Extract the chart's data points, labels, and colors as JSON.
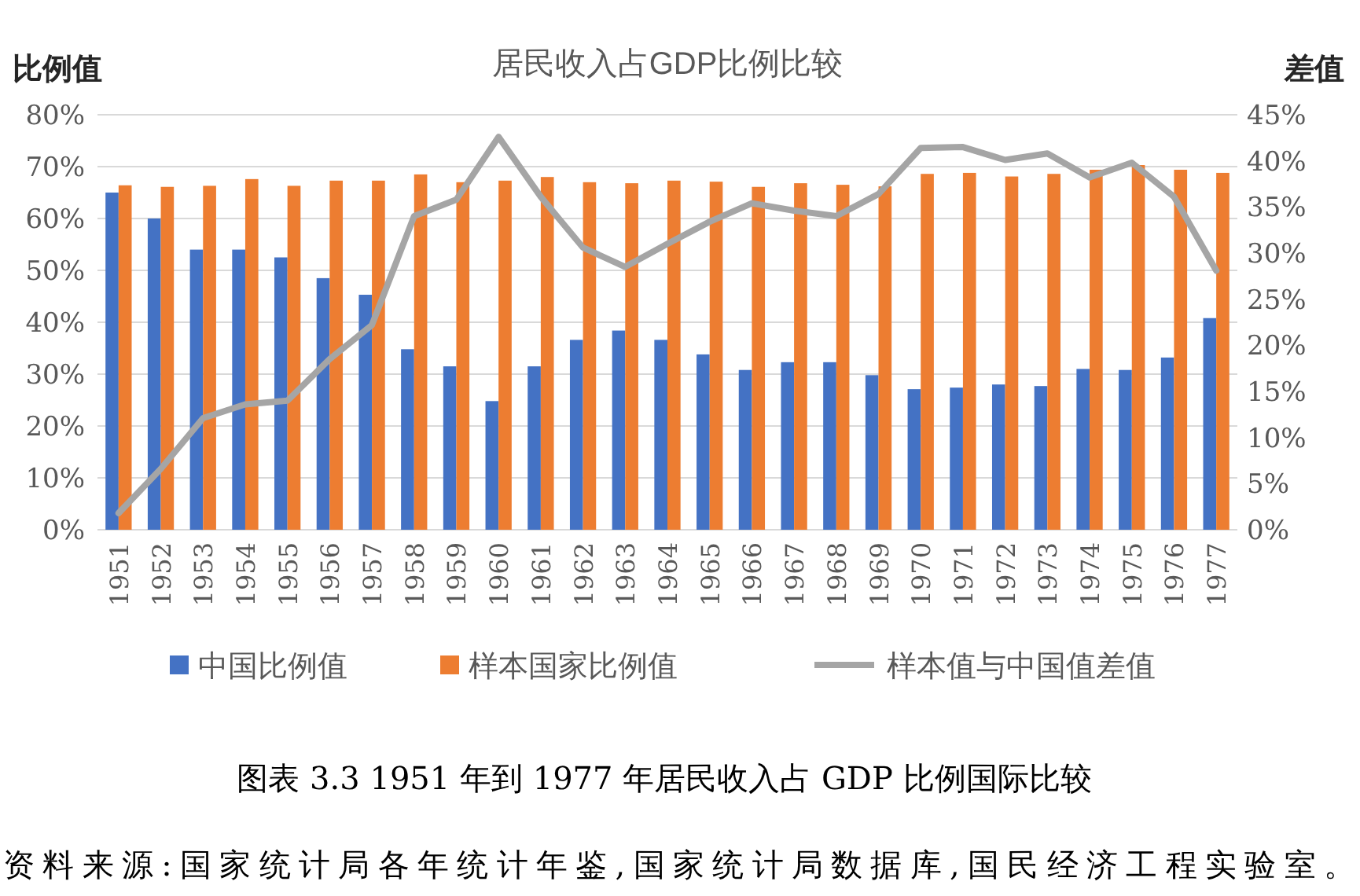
{
  "chart_data": {
    "type": "bar",
    "title": "居民收入占GDP比例比较",
    "ylabel": "比例值",
    "y2label": "差值",
    "categories": [
      "1951",
      "1952",
      "1953",
      "1954",
      "1955",
      "1956",
      "1957",
      "1958",
      "1959",
      "1960",
      "1961",
      "1962",
      "1963",
      "1964",
      "1965",
      "1966",
      "1967",
      "1968",
      "1969",
      "1970",
      "1971",
      "1972",
      "1973",
      "1974",
      "1975",
      "1976",
      "1977"
    ],
    "series": [
      {
        "name": "中国比例值",
        "color": "#4472c4",
        "values": [
          65,
          60,
          54,
          54,
          52.5,
          48.5,
          45.3,
          34.8,
          31.5,
          24.8,
          31.5,
          36.6,
          38.4,
          36.6,
          33.8,
          30.8,
          32.3,
          32.3,
          29.8,
          27.1,
          27.4,
          28,
          27.7,
          31,
          30.8,
          33.2,
          40.8
        ]
      },
      {
        "name": "样本国家比例值",
        "color": "#ed7d31",
        "values": [
          66.4,
          66.1,
          66.3,
          67.6,
          66.3,
          67.3,
          67.3,
          68.5,
          67,
          67.3,
          68,
          67,
          66.8,
          67.3,
          67.1,
          66.1,
          66.8,
          66.5,
          66.2,
          68.6,
          68.8,
          68.1,
          68.6,
          69.4,
          70.3,
          69.4,
          68.8
        ]
      },
      {
        "name": "样本值与中国值差值",
        "type": "line",
        "axis": "y2",
        "color": "#a5a5a5",
        "values": [
          1.8,
          6.6,
          12.1,
          13.6,
          14,
          18.5,
          22.2,
          34,
          35.8,
          42.6,
          36.1,
          30.6,
          28.5,
          31,
          33.4,
          35.4,
          34.6,
          34,
          36.4,
          41.4,
          41.5,
          40.1,
          40.8,
          38.2,
          39.8,
          36.1,
          28.1
        ]
      }
    ],
    "ylim": [
      0,
      80
    ],
    "yticks": [
      {
        "value": 0,
        "label": "0%"
      },
      {
        "value": 10,
        "label": "10%"
      },
      {
        "value": 20,
        "label": "20%"
      },
      {
        "value": 30,
        "label": "30%"
      },
      {
        "value": 40,
        "label": "40%"
      },
      {
        "value": 50,
        "label": "50%"
      },
      {
        "value": 60,
        "label": "60%"
      },
      {
        "value": 70,
        "label": "70%"
      },
      {
        "value": 80,
        "label": "80%"
      }
    ],
    "y2lim": [
      0,
      45
    ],
    "y2ticks": [
      {
        "value": 0,
        "label": "0%"
      },
      {
        "value": 5,
        "label": "5%"
      },
      {
        "value": 10,
        "label": "10%"
      },
      {
        "value": 15,
        "label": "15%"
      },
      {
        "value": 20,
        "label": "20%"
      },
      {
        "value": 25,
        "label": "25%"
      },
      {
        "value": 30,
        "label": "30%"
      },
      {
        "value": 35,
        "label": "35%"
      },
      {
        "value": 40,
        "label": "40%"
      },
      {
        "value": 45,
        "label": "45%"
      }
    ],
    "grid": "y",
    "legend": "bottom",
    "marker": "none",
    "line_style": "solid",
    "annotations": [
      "图表 3.3   1951 年到 1977 年居民收入占 GDP 比例国际比较",
      "资料来源:国家统计局各年统计年鉴,国家统计局数据库,国民经济工程实验室。"
    ]
  }
}
